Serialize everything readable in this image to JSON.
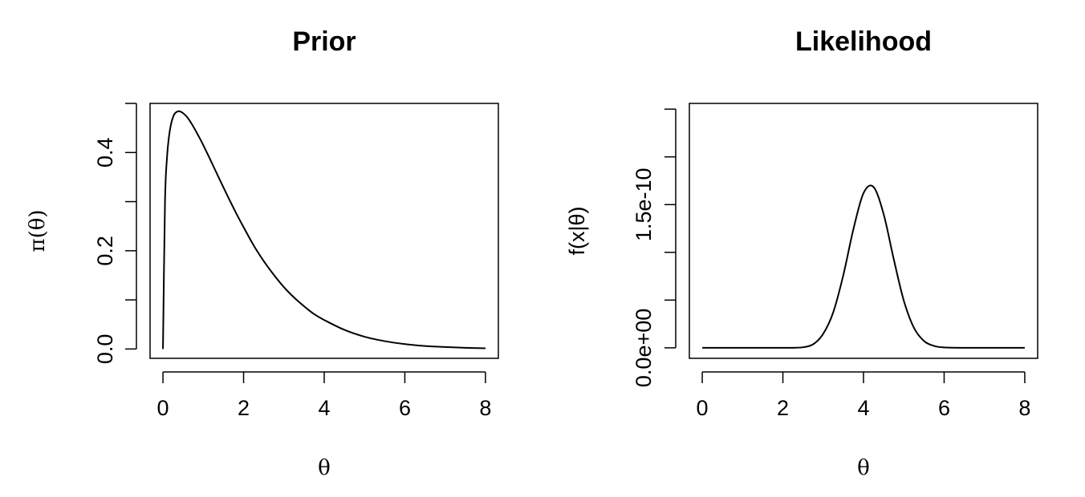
{
  "chart_data": [
    {
      "type": "line",
      "title": "Prior",
      "xlabel": "θ",
      "ylabel": "π(θ)",
      "xlim": [
        -0.32,
        8.32
      ],
      "ylim": [
        -0.019,
        0.5
      ],
      "x_ticks": [
        0,
        2,
        4,
        6,
        8
      ],
      "x_tick_labels": [
        "0",
        "2",
        "4",
        "6",
        "8"
      ],
      "y_ticks": [
        0.0,
        0.1,
        0.2,
        0.3,
        0.4,
        0.5
      ],
      "y_tick_labels": [
        "0.0",
        "",
        "0.2",
        "",
        "0.4",
        ""
      ],
      "grid": false,
      "series": [
        {
          "x": [
            0,
            0.05,
            0.1,
            0.15,
            0.2,
            0.25,
            0.3,
            0.4,
            0.5,
            0.6,
            0.7,
            0.8,
            0.9,
            1.0,
            1.2,
            1.4,
            1.6,
            1.8,
            2.0,
            2.25,
            2.5,
            2.75,
            3.0,
            3.25,
            3.5,
            3.75,
            4.0,
            4.5,
            5.0,
            5.5,
            6.0,
            6.5,
            7.0,
            7.5,
            8.0
          ],
          "values": [
            0,
            0.298,
            0.39,
            0.433,
            0.458,
            0.472,
            0.48,
            0.484,
            0.48,
            0.472,
            0.46,
            0.446,
            0.431,
            0.415,
            0.381,
            0.346,
            0.312,
            0.279,
            0.248,
            0.211,
            0.179,
            0.151,
            0.126,
            0.105,
            0.087,
            0.071,
            0.059,
            0.039,
            0.025,
            0.016,
            0.01,
            0.006,
            0.004,
            0.0025,
            0.0015
          ]
        }
      ]
    },
    {
      "type": "line",
      "title": "Likelihood",
      "xlabel": "θ",
      "ylabel": "f(x|θ)",
      "xlim": [
        -0.32,
        8.32
      ],
      "ylim": [
        -1.1e-11,
        2.56e-10
      ],
      "x_ticks": [
        0,
        2,
        4,
        6,
        8
      ],
      "x_tick_labels": [
        "0",
        "2",
        "4",
        "6",
        "8"
      ],
      "y_ticks": [
        0,
        5e-11,
        1e-10,
        1.5e-10,
        2e-10,
        2.5e-10
      ],
      "y_tick_labels": [
        "0.0e+00",
        "",
        "",
        "1.5e-10",
        "",
        ""
      ],
      "grid": false,
      "series": [
        {
          "x": [
            0,
            0.5,
            1,
            1.5,
            2,
            2.25,
            2.5,
            2.75,
            3,
            3.25,
            3.5,
            3.75,
            4,
            4.25,
            4.5,
            4.75,
            5,
            5.25,
            5.5,
            5.75,
            6,
            6.5,
            7,
            7.5,
            8
          ],
          "values": [
            0,
            0,
            0,
            0,
            1e-14,
            6e-14,
            5.9e-13,
            3.68e-12,
            1.464e-11,
            3.733e-11,
            7.626e-11,
            1.2437e-10,
            1.62e-10,
            1.6843e-10,
            1.3995e-10,
            9.288e-11,
            4.937e-11,
            2.104e-11,
            7.2e-12,
            1.97e-12,
            4.3e-13,
            1e-14,
            0,
            0,
            0
          ]
        }
      ]
    }
  ]
}
